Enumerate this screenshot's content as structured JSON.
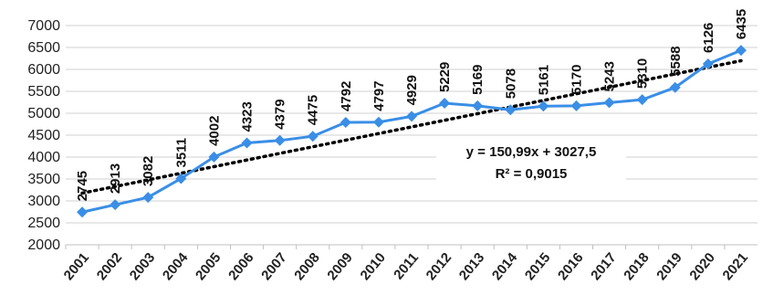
{
  "chart_data": {
    "type": "line",
    "categories": [
      "2001",
      "2002",
      "2003",
      "2004",
      "2005",
      "2006",
      "2007",
      "2008",
      "2009",
      "2010",
      "2011",
      "2012",
      "2013",
      "2014",
      "2015",
      "2016",
      "2017",
      "2018",
      "2019",
      "2020",
      "2021"
    ],
    "series": [
      {
        "values": [
          2745,
          2913,
          3082,
          3511,
          4002,
          4323,
          4379,
          4475,
          4792,
          4797,
          4929,
          5229,
          5169,
          5078,
          5161,
          5170,
          5243,
          5310,
          5588,
          6126,
          6435
        ],
        "color": "#3a8ee6"
      }
    ],
    "data_labels": [
      "2745",
      "2913",
      "3082",
      "3511",
      "4002",
      "4323",
      "4379",
      "4475",
      "4792",
      "4797",
      "4929",
      "5229",
      "5169",
      "5078",
      "5161",
      "5170",
      "5243",
      "5310",
      "5588",
      "6126",
      "6435"
    ],
    "trendline": {
      "type": "linear",
      "slope": 150.99,
      "intercept": 3027.5,
      "equation": "y = 150,99x + 3027,5",
      "r_squared": "R² = 0,9015",
      "style": "dotted",
      "color": "#000000"
    },
    "y_ticks": [
      "2000",
      "2500",
      "3000",
      "3500",
      "4000",
      "4500",
      "5000",
      "5500",
      "6000",
      "6500",
      "7000"
    ],
    "ylim": [
      2000,
      7000
    ],
    "grid": true,
    "legend": "none",
    "title": "",
    "xlabel": "",
    "ylabel": ""
  }
}
